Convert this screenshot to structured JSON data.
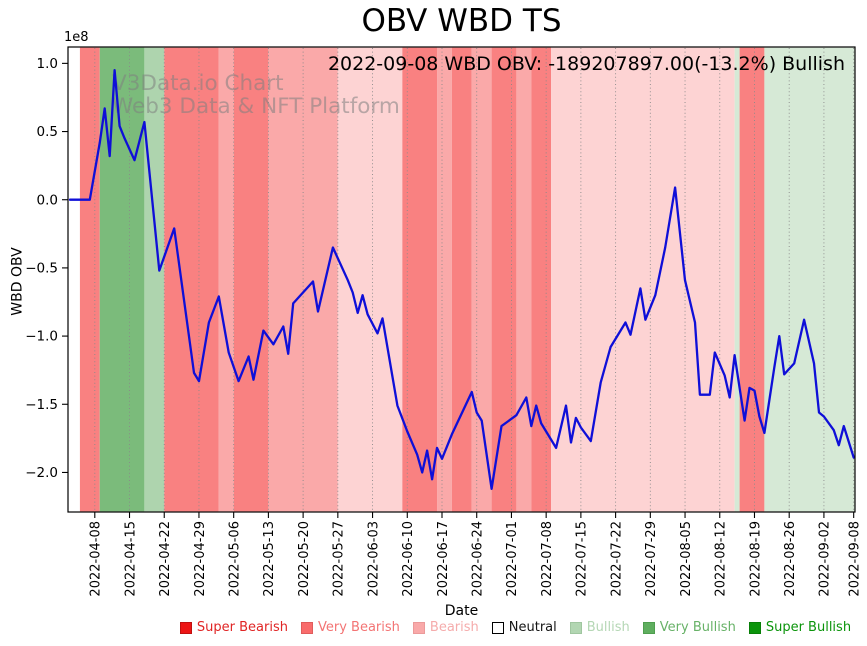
{
  "figure": {
    "title": "OBV WBD TS",
    "annotation": "2022-09-08 WBD OBV: -189207897.00(-13.2%) Bullish",
    "watermark": {
      "line1": "V3Data.io Chart",
      "line2": "Web3 Data & NFT Platform"
    }
  },
  "chart_data": {
    "type": "line",
    "title": "OBV WBD TS",
    "xlabel": "Date",
    "ylabel": "WBD OBV",
    "y_offset_label": "1e8",
    "y_unit": "1e8",
    "ylim": [
      -2.29,
      1.12
    ],
    "grid": "vertical-dotted",
    "line_color": "#0f0fd8",
    "y_ticks": [
      {
        "v": 1.0,
        "label": "1.0"
      },
      {
        "v": 0.5,
        "label": "0.5"
      },
      {
        "v": 0.0,
        "label": "0.0"
      },
      {
        "v": -0.5,
        "label": "−0.5"
      },
      {
        "v": -1.0,
        "label": "−1.0"
      },
      {
        "v": -1.5,
        "label": "−1.5"
      },
      {
        "v": -2.0,
        "label": "−2.0"
      }
    ],
    "x_ticks": [
      "2022-04-08",
      "2022-04-15",
      "2022-04-22",
      "2022-04-29",
      "2022-05-06",
      "2022-05-13",
      "2022-05-20",
      "2022-05-27",
      "2022-06-03",
      "2022-06-10",
      "2022-06-17",
      "2022-06-24",
      "2022-07-01",
      "2022-07-08",
      "2022-07-15",
      "2022-07-22",
      "2022-07-29",
      "2022-08-05",
      "2022-08-12",
      "2022-08-19",
      "2022-08-26",
      "2022-09-02",
      "2022-09-08"
    ],
    "series": {
      "name": "WBD OBV",
      "points": [
        [
          "2022-04-03",
          0.0
        ],
        [
          "2022-04-07",
          0.0
        ],
        [
          "2022-04-09",
          0.42
        ],
        [
          "2022-04-10",
          0.67
        ],
        [
          "2022-04-11",
          0.32
        ],
        [
          "2022-04-12",
          0.95
        ],
        [
          "2022-04-13",
          0.54
        ],
        [
          "2022-04-14",
          0.45
        ],
        [
          "2022-04-16",
          0.29
        ],
        [
          "2022-04-18",
          0.57
        ],
        [
          "2022-04-21",
          -0.52
        ],
        [
          "2022-04-24",
          -0.21
        ],
        [
          "2022-04-28",
          -1.27
        ],
        [
          "2022-04-29",
          -1.33
        ],
        [
          "2022-05-01",
          -0.9
        ],
        [
          "2022-05-03",
          -0.71
        ],
        [
          "2022-05-05",
          -1.12
        ],
        [
          "2022-05-07",
          -1.33
        ],
        [
          "2022-05-09",
          -1.15
        ],
        [
          "2022-05-10",
          -1.32
        ],
        [
          "2022-05-12",
          -0.96
        ],
        [
          "2022-05-14",
          -1.06
        ],
        [
          "2022-05-16",
          -0.93
        ],
        [
          "2022-05-17",
          -1.13
        ],
        [
          "2022-05-18",
          -0.76
        ],
        [
          "2022-05-22",
          -0.6
        ],
        [
          "2022-05-23",
          -0.82
        ],
        [
          "2022-05-26",
          -0.35
        ],
        [
          "2022-05-29",
          -0.59
        ],
        [
          "2022-05-30",
          -0.68
        ],
        [
          "2022-05-31",
          -0.83
        ],
        [
          "2022-06-01",
          -0.7
        ],
        [
          "2022-06-02",
          -0.84
        ],
        [
          "2022-06-04",
          -0.98
        ],
        [
          "2022-06-05",
          -0.87
        ],
        [
          "2022-06-08",
          -1.51
        ],
        [
          "2022-06-10",
          -1.7
        ],
        [
          "2022-06-12",
          -1.87
        ],
        [
          "2022-06-13",
          -2.0
        ],
        [
          "2022-06-14",
          -1.84
        ],
        [
          "2022-06-15",
          -2.05
        ],
        [
          "2022-06-16",
          -1.82
        ],
        [
          "2022-06-17",
          -1.9
        ],
        [
          "2022-06-19",
          -1.72
        ],
        [
          "2022-06-23",
          -1.41
        ],
        [
          "2022-06-24",
          -1.56
        ],
        [
          "2022-06-25",
          -1.62
        ],
        [
          "2022-06-27",
          -2.12
        ],
        [
          "2022-06-29",
          -1.66
        ],
        [
          "2022-07-02",
          -1.58
        ],
        [
          "2022-07-04",
          -1.45
        ],
        [
          "2022-07-05",
          -1.66
        ],
        [
          "2022-07-06",
          -1.51
        ],
        [
          "2022-07-07",
          -1.64
        ],
        [
          "2022-07-10",
          -1.82
        ],
        [
          "2022-07-12",
          -1.51
        ],
        [
          "2022-07-13",
          -1.78
        ],
        [
          "2022-07-14",
          -1.6
        ],
        [
          "2022-07-15",
          -1.67
        ],
        [
          "2022-07-17",
          -1.77
        ],
        [
          "2022-07-19",
          -1.34
        ],
        [
          "2022-07-21",
          -1.08
        ],
        [
          "2022-07-24",
          -0.9
        ],
        [
          "2022-07-25",
          -0.99
        ],
        [
          "2022-07-27",
          -0.65
        ],
        [
          "2022-07-28",
          -0.88
        ],
        [
          "2022-07-30",
          -0.7
        ],
        [
          "2022-08-01",
          -0.35
        ],
        [
          "2022-08-03",
          0.09
        ],
        [
          "2022-08-05",
          -0.59
        ],
        [
          "2022-08-07",
          -0.9
        ],
        [
          "2022-08-08",
          -1.43
        ],
        [
          "2022-08-10",
          -1.43
        ],
        [
          "2022-08-11",
          -1.12
        ],
        [
          "2022-08-13",
          -1.29
        ],
        [
          "2022-08-14",
          -1.45
        ],
        [
          "2022-08-15",
          -1.14
        ],
        [
          "2022-08-17",
          -1.62
        ],
        [
          "2022-08-18",
          -1.38
        ],
        [
          "2022-08-19",
          -1.4
        ],
        [
          "2022-08-20",
          -1.59
        ],
        [
          "2022-08-21",
          -1.71
        ],
        [
          "2022-08-23",
          -1.23
        ],
        [
          "2022-08-24",
          -1.0
        ],
        [
          "2022-08-25",
          -1.28
        ],
        [
          "2022-08-27",
          -1.2
        ],
        [
          "2022-08-29",
          -0.88
        ],
        [
          "2022-08-31",
          -1.2
        ],
        [
          "2022-09-01",
          -1.56
        ],
        [
          "2022-09-02",
          -1.59
        ],
        [
          "2022-09-04",
          -1.69
        ],
        [
          "2022-09-05",
          -1.8
        ],
        [
          "2022-09-06",
          -1.66
        ],
        [
          "2022-09-08",
          -1.89
        ]
      ]
    },
    "sentiment_bands": {
      "palette": {
        "super_bearish": "#ed1515",
        "very_bearish": "#f98181",
        "bearish": "#faa9a9",
        "bearish_weak": "#fdd3d3",
        "neutral": "#ffffff",
        "bullish_weak": "#d6e9d6",
        "bullish": "#aed4ae",
        "very_bullish": "#7bbb7b",
        "super_bullish": "#0b940b"
      },
      "segments": [
        {
          "from": "2022-04-05",
          "to": "2022-04-09",
          "sentiment": "very_bearish"
        },
        {
          "from": "2022-04-09",
          "to": "2022-04-18",
          "sentiment": "very_bullish"
        },
        {
          "from": "2022-04-18",
          "to": "2022-04-22",
          "sentiment": "bullish"
        },
        {
          "from": "2022-04-22",
          "to": "2022-05-03",
          "sentiment": "very_bearish"
        },
        {
          "from": "2022-05-03",
          "to": "2022-05-06",
          "sentiment": "bearish"
        },
        {
          "from": "2022-05-06",
          "to": "2022-05-13",
          "sentiment": "very_bearish"
        },
        {
          "from": "2022-05-13",
          "to": "2022-05-27",
          "sentiment": "bearish"
        },
        {
          "from": "2022-05-27",
          "to": "2022-06-09",
          "sentiment": "bearish_weak"
        },
        {
          "from": "2022-06-09",
          "to": "2022-06-16",
          "sentiment": "very_bearish"
        },
        {
          "from": "2022-06-16",
          "to": "2022-06-19",
          "sentiment": "bearish"
        },
        {
          "from": "2022-06-19",
          "to": "2022-06-23",
          "sentiment": "very_bearish"
        },
        {
          "from": "2022-06-23",
          "to": "2022-06-27",
          "sentiment": "bearish"
        },
        {
          "from": "2022-06-27",
          "to": "2022-07-02",
          "sentiment": "very_bearish"
        },
        {
          "from": "2022-07-02",
          "to": "2022-07-05",
          "sentiment": "bearish"
        },
        {
          "from": "2022-07-05",
          "to": "2022-07-09",
          "sentiment": "very_bearish"
        },
        {
          "from": "2022-07-09",
          "to": "2022-08-15",
          "sentiment": "bearish_weak"
        },
        {
          "from": "2022-08-15",
          "to": "2022-08-16",
          "sentiment": "bullish_weak"
        },
        {
          "from": "2022-08-16",
          "to": "2022-08-21",
          "sentiment": "very_bearish"
        },
        {
          "from": "2022-08-21",
          "to": "2022-09-09",
          "sentiment": "bullish_weak"
        }
      ]
    }
  },
  "legend": {
    "items": [
      {
        "label": "Super Bearish",
        "swatch": "#ed1515",
        "text_color": "#e02525",
        "border": "#c01010"
      },
      {
        "label": "Very Bearish",
        "swatch": "#f96c6c",
        "text_color": "#f37474",
        "border": "#e05c5c"
      },
      {
        "label": "Bearish",
        "swatch": "#f9a9a9",
        "text_color": "#f5acac",
        "border": "#eb9a9a"
      },
      {
        "label": "Neutral",
        "swatch": "#ffffff",
        "text_color": "#151515",
        "border": "#000000"
      },
      {
        "label": "Bullish",
        "swatch": "#b2d6b2",
        "text_color": "#b5d7b5",
        "border": "#a0c6a0"
      },
      {
        "label": "Very Bullish",
        "swatch": "#5fae5f",
        "text_color": "#68b268",
        "border": "#4f9e4f"
      },
      {
        "label": "Super Bullish",
        "swatch": "#0b940b",
        "text_color": "#0b940b",
        "border": "#087f08"
      }
    ]
  }
}
